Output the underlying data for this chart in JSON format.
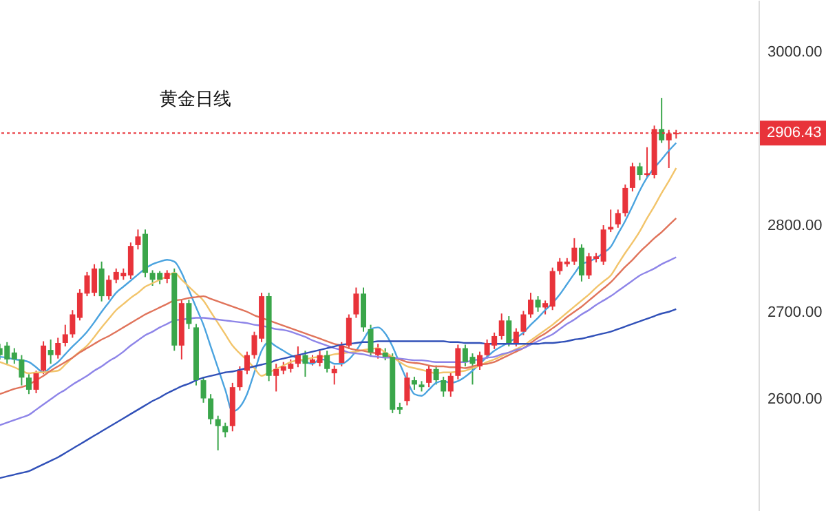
{
  "chart_data": {
    "type": "candlestick",
    "title": "黄金日线",
    "categories": [
      null,
      null,
      null,
      null,
      null,
      null,
      null,
      null,
      null,
      null,
      null,
      null,
      null,
      null,
      null,
      null,
      null,
      null,
      null,
      null,
      null,
      null,
      null,
      null,
      null,
      null,
      null,
      null,
      null,
      null,
      null,
      null,
      null,
      null,
      null,
      null,
      null,
      null,
      null,
      null,
      null,
      null,
      null,
      null,
      null,
      null,
      null,
      null,
      null,
      null,
      null,
      null,
      null,
      null,
      null,
      null,
      null,
      null,
      null,
      null,
      null,
      null,
      null,
      null,
      null,
      null,
      null,
      null,
      null,
      null,
      null,
      null,
      null,
      null,
      null,
      null,
      null,
      null,
      null,
      null,
      null,
      null,
      null,
      null,
      null,
      null,
      null,
      null,
      null,
      null,
      null,
      null,
      null,
      null
    ],
    "ohlc": [
      [
        2658,
        2663,
        2645,
        2650
      ],
      [
        2661,
        2665,
        2640,
        2645
      ],
      [
        2653,
        2658,
        2640,
        2645
      ],
      [
        2645,
        2650,
        2615,
        2624
      ],
      [
        2624,
        2628,
        2605,
        2610
      ],
      [
        2610,
        2632,
        2606,
        2629
      ],
      [
        2632,
        2666,
        2628,
        2661
      ],
      [
        2656,
        2668,
        2640,
        2650
      ],
      [
        2650,
        2670,
        2646,
        2664
      ],
      [
        2664,
        2685,
        2660,
        2674
      ],
      [
        2674,
        2702,
        2670,
        2697
      ],
      [
        2693,
        2726,
        2690,
        2722
      ],
      [
        2721,
        2746,
        2718,
        2742
      ],
      [
        2722,
        2755,
        2718,
        2750
      ],
      [
        2750,
        2758,
        2712,
        2718
      ],
      [
        2718,
        2742,
        2714,
        2737
      ],
      [
        2737,
        2750,
        2733,
        2746
      ],
      [
        2741,
        2750,
        2737,
        2745
      ],
      [
        2742,
        2780,
        2738,
        2776
      ],
      [
        2777,
        2795,
        2772,
        2787
      ],
      [
        2790,
        2795,
        2740,
        2745
      ],
      [
        2745,
        2748,
        2730,
        2737
      ],
      [
        2745,
        2747,
        2732,
        2737
      ],
      [
        2738,
        2748,
        2733,
        2745
      ],
      [
        2745,
        2750,
        2655,
        2661
      ],
      [
        2661,
        2714,
        2645,
        2710
      ],
      [
        2710,
        2714,
        2680,
        2686
      ],
      [
        2682,
        2686,
        2615,
        2621
      ],
      [
        2621,
        2625,
        2595,
        2600
      ],
      [
        2600,
        2605,
        2570,
        2576
      ],
      [
        2576,
        2580,
        2540,
        2568
      ],
      [
        2568,
        2572,
        2555,
        2561
      ],
      [
        2568,
        2618,
        2562,
        2613
      ],
      [
        2613,
        2637,
        2609,
        2632
      ],
      [
        2632,
        2654,
        2628,
        2650
      ],
      [
        2650,
        2677,
        2646,
        2673
      ],
      [
        2669,
        2722,
        2665,
        2718
      ],
      [
        2718,
        2722,
        2620,
        2626
      ],
      [
        2626,
        2640,
        2608,
        2634
      ],
      [
        2632,
        2642,
        2628,
        2637
      ],
      [
        2634,
        2645,
        2630,
        2640
      ],
      [
        2640,
        2660,
        2636,
        2650
      ],
      [
        2650,
        2655,
        2625,
        2640
      ],
      [
        2641,
        2650,
        2638,
        2645
      ],
      [
        2641,
        2655,
        2637,
        2650
      ],
      [
        2650,
        2655,
        2630,
        2634
      ],
      [
        2629,
        2638,
        2616,
        2634
      ],
      [
        2641,
        2665,
        2637,
        2661
      ],
      [
        2661,
        2697,
        2657,
        2693
      ],
      [
        2697,
        2728,
        2693,
        2721
      ],
      [
        2721,
        2728,
        2677,
        2682
      ],
      [
        2680,
        2685,
        2648,
        2653
      ],
      [
        2650,
        2663,
        2646,
        2658
      ],
      [
        2653,
        2658,
        2644,
        2648
      ],
      [
        2648,
        2652,
        2583,
        2587
      ],
      [
        2590,
        2595,
        2582,
        2587
      ],
      [
        2597,
        2630,
        2592,
        2624
      ],
      [
        2621,
        2625,
        2610,
        2616
      ],
      [
        2616,
        2620,
        2608,
        2613
      ],
      [
        2618,
        2638,
        2613,
        2634
      ],
      [
        2634,
        2638,
        2616,
        2621
      ],
      [
        2621,
        2625,
        2602,
        2608
      ],
      [
        2608,
        2630,
        2602,
        2626
      ],
      [
        2626,
        2662,
        2622,
        2658
      ],
      [
        2658,
        2662,
        2637,
        2642
      ],
      [
        2648,
        2652,
        2616,
        2640
      ],
      [
        2637,
        2654,
        2633,
        2650
      ],
      [
        2650,
        2668,
        2646,
        2664
      ],
      [
        2661,
        2676,
        2657,
        2672
      ],
      [
        2672,
        2698,
        2668,
        2690
      ],
      [
        2690,
        2695,
        2660,
        2664
      ],
      [
        2664,
        2681,
        2660,
        2677
      ],
      [
        2677,
        2701,
        2673,
        2697
      ],
      [
        2697,
        2722,
        2693,
        2714
      ],
      [
        2714,
        2718,
        2700,
        2705
      ],
      [
        2705,
        2713,
        2697,
        2710
      ],
      [
        2706,
        2751,
        2702,
        2747
      ],
      [
        2747,
        2762,
        2743,
        2758
      ],
      [
        2755,
        2762,
        2752,
        2758
      ],
      [
        2758,
        2785,
        2754,
        2774
      ],
      [
        2774,
        2778,
        2735,
        2742
      ],
      [
        2742,
        2768,
        2738,
        2764
      ],
      [
        2761,
        2768,
        2757,
        2764
      ],
      [
        2758,
        2800,
        2754,
        2795
      ],
      [
        2795,
        2818,
        2792,
        2798
      ],
      [
        2801,
        2818,
        2797,
        2814
      ],
      [
        2814,
        2847,
        2810,
        2843
      ],
      [
        2843,
        2872,
        2839,
        2868
      ],
      [
        2868,
        2872,
        2852,
        2858
      ],
      [
        2858,
        2890,
        2855,
        2860
      ],
      [
        2858,
        2915,
        2854,
        2911
      ],
      [
        2911,
        2947,
        2895,
        2898
      ],
      [
        2898,
        2910,
        2866,
        2906
      ],
      [
        2905,
        2910,
        2900,
        2906.43
      ]
    ],
    "series": [
      {
        "type": "line",
        "color": "#4aa3df",
        "values": [
          2648,
          2647,
          2645,
          2644,
          2642,
          2636,
          2630,
          2636,
          2642,
          2651,
          2660,
          2668,
          2677,
          2688,
          2700,
          2711,
          2722,
          2729,
          2736,
          2743,
          2750,
          2755,
          2758,
          2760,
          2758,
          2745,
          2725,
          2705,
          2685,
          2660,
          2635,
          2610,
          2585,
          2590,
          2605,
          2630,
          2655,
          2665,
          2660,
          2655,
          2650,
          2646,
          2642,
          2640,
          2645,
          2644,
          2640,
          2640,
          2645,
          2655,
          2668,
          2680,
          2682,
          2675,
          2660,
          2640,
          2621,
          2605,
          2603,
          2610,
          2618,
          2620,
          2618,
          2620,
          2625,
          2632,
          2640,
          2648,
          2655,
          2660,
          2665,
          2670,
          2676,
          2685,
          2693,
          2702,
          2710,
          2720,
          2732,
          2744,
          2755,
          2758,
          2762,
          2768,
          2775,
          2790,
          2805,
          2822,
          2840,
          2855,
          2866,
          2876,
          2886,
          2895
        ]
      },
      {
        "type": "line",
        "color": "#f2c46a",
        "values": [
          2642,
          2639,
          2636,
          2632,
          2629,
          2630,
          2630,
          2631,
          2632,
          2639,
          2647,
          2654,
          2661,
          2671,
          2682,
          2692,
          2702,
          2709,
          2716,
          2722,
          2729,
          2733,
          2737,
          2741,
          2745,
          2737,
          2729,
          2721,
          2713,
          2700,
          2687,
          2674,
          2661,
          2652,
          2644,
          2635,
          2626,
          2630,
          2634,
          2638,
          2642,
          2644,
          2645,
          2647,
          2648,
          2649,
          2651,
          2652,
          2653,
          2654,
          2656,
          2657,
          2658,
          2653,
          2648,
          2642,
          2637,
          2635,
          2633,
          2631,
          2629,
          2630,
          2630,
          2631,
          2632,
          2635,
          2638,
          2642,
          2645,
          2649,
          2653,
          2657,
          2661,
          2667,
          2673,
          2679,
          2685,
          2692,
          2699,
          2706,
          2713,
          2720,
          2728,
          2735,
          2742,
          2755,
          2768,
          2780,
          2793,
          2808,
          2822,
          2837,
          2851,
          2866
        ]
      },
      {
        "type": "line",
        "color": "#e0735a",
        "values": [
          2605,
          2608,
          2611,
          2613,
          2616,
          2621,
          2626,
          2632,
          2637,
          2642,
          2647,
          2653,
          2658,
          2663,
          2668,
          2672,
          2677,
          2682,
          2687,
          2692,
          2697,
          2701,
          2705,
          2709,
          2713,
          2714,
          2716,
          2717,
          2718,
          2715,
          2712,
          2709,
          2706,
          2703,
          2700,
          2696,
          2693,
          2690,
          2687,
          2684,
          2681,
          2678,
          2675,
          2672,
          2669,
          2666,
          2663,
          2661,
          2658,
          2656,
          2655,
          2653,
          2652,
          2650,
          2647,
          2645,
          2642,
          2641,
          2640,
          2638,
          2637,
          2637,
          2636,
          2636,
          2635,
          2637,
          2639,
          2640,
          2642,
          2646,
          2650,
          2654,
          2658,
          2664,
          2670,
          2675,
          2681,
          2687,
          2694,
          2700,
          2706,
          2713,
          2720,
          2727,
          2734,
          2743,
          2752,
          2760,
          2769,
          2777,
          2785,
          2792,
          2800,
          2808
        ]
      },
      {
        "type": "line",
        "color": "#8d84e8",
        "values": [
          2569,
          2572,
          2575,
          2578,
          2581,
          2587,
          2593,
          2599,
          2605,
          2610,
          2616,
          2621,
          2626,
          2632,
          2637,
          2643,
          2648,
          2654,
          2661,
          2667,
          2673,
          2677,
          2682,
          2686,
          2690,
          2691,
          2692,
          2693,
          2693,
          2692,
          2691,
          2690,
          2689,
          2688,
          2687,
          2685,
          2684,
          2682,
          2680,
          2679,
          2677,
          2674,
          2671,
          2667,
          2664,
          2661,
          2658,
          2656,
          2653,
          2652,
          2651,
          2649,
          2648,
          2647,
          2647,
          2646,
          2645,
          2644,
          2644,
          2643,
          2642,
          2642,
          2642,
          2642,
          2642,
          2644,
          2645,
          2647,
          2648,
          2651,
          2653,
          2656,
          2658,
          2662,
          2666,
          2670,
          2674,
          2680,
          2686,
          2691,
          2697,
          2702,
          2708,
          2713,
          2718,
          2724,
          2730,
          2736,
          2742,
          2746,
          2750,
          2755,
          2759,
          2763
        ]
      },
      {
        "type": "line",
        "color": "#3050b8",
        "values": [
          2508,
          2510,
          2512,
          2514,
          2516,
          2520,
          2524,
          2528,
          2532,
          2537,
          2542,
          2547,
          2552,
          2557,
          2562,
          2567,
          2572,
          2577,
          2582,
          2587,
          2592,
          2597,
          2601,
          2606,
          2610,
          2614,
          2617,
          2621,
          2624,
          2626,
          2628,
          2630,
          2631,
          2633,
          2635,
          2637,
          2639,
          2641,
          2644,
          2646,
          2648,
          2650,
          2652,
          2654,
          2656,
          2658,
          2660,
          2662,
          2663,
          2664,
          2665,
          2665,
          2666,
          2666,
          2666,
          2666,
          2666,
          2666,
          2666,
          2666,
          2666,
          2666,
          2665,
          2665,
          2664,
          2664,
          2664,
          2663,
          2663,
          2663,
          2663,
          2663,
          2663,
          2663,
          2663,
          2664,
          2664,
          2665,
          2666,
          2668,
          2669,
          2671,
          2673,
          2675,
          2677,
          2680,
          2683,
          2686,
          2689,
          2692,
          2695,
          2698,
          2700,
          2703
        ]
      }
    ],
    "ylim": [
      2470,
      3060
    ],
    "yticks": [
      {
        "value": 2600,
        "label": "2600.00"
      },
      {
        "value": 2700,
        "label": "2700.00"
      },
      {
        "value": 2800,
        "label": "2800.00"
      },
      {
        "value": 3000,
        "label": "3000.00"
      }
    ],
    "ref_lines": [
      {
        "axis": "y",
        "value": 2906.43,
        "label": "2906.43",
        "color": "#e8333a",
        "line_style": "dotted"
      }
    ],
    "tick_labels": "y",
    "grid": false
  }
}
